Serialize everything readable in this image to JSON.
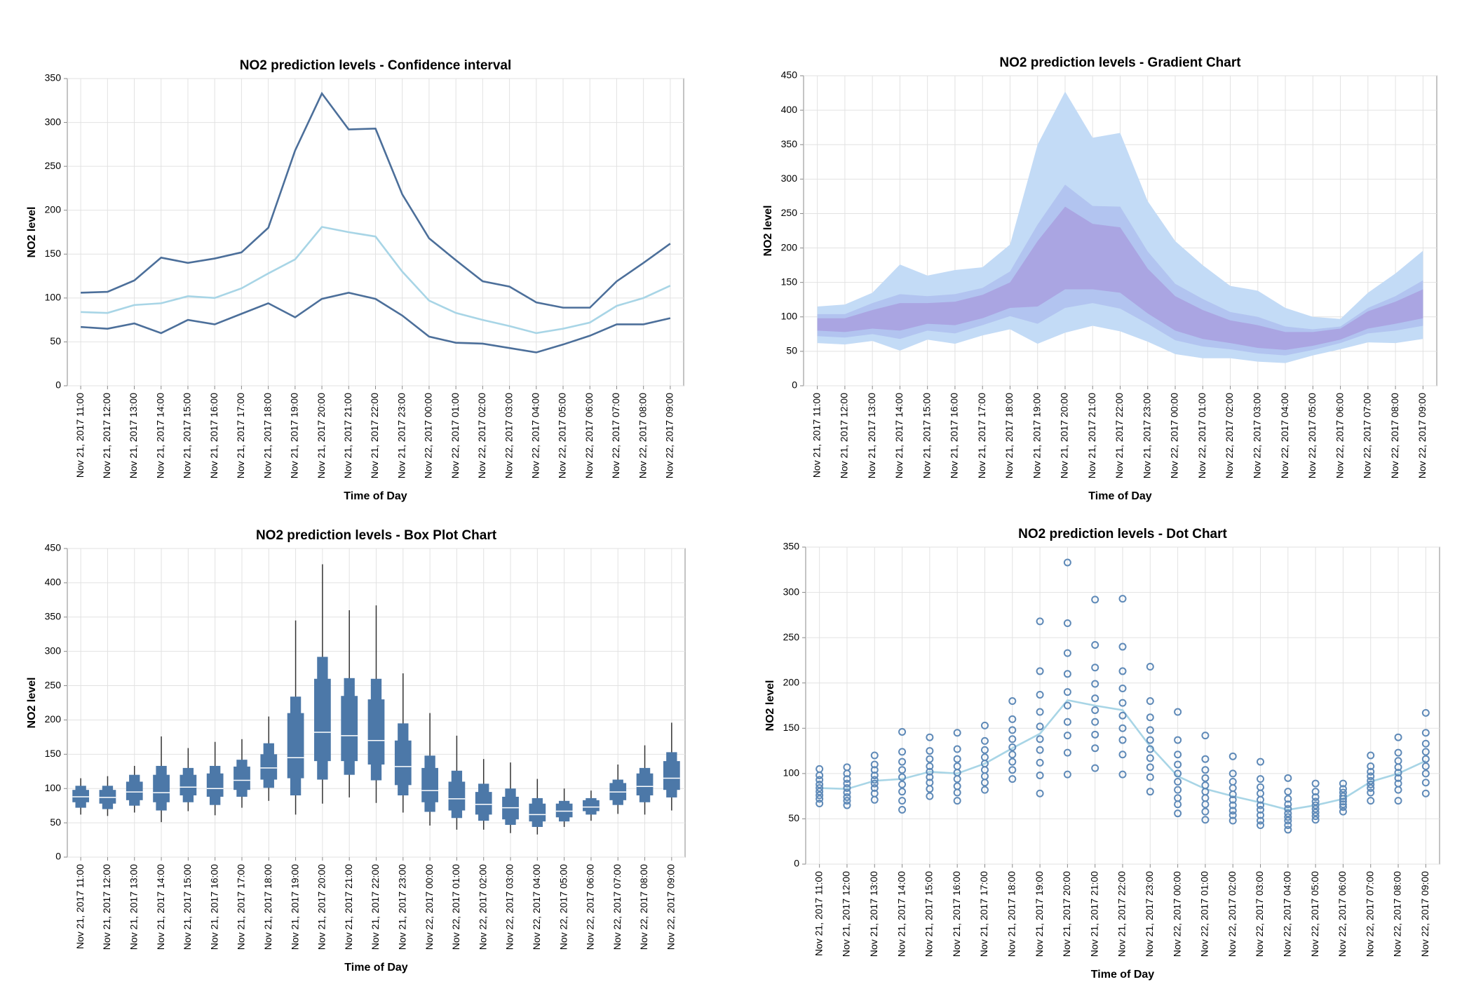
{
  "chart_data": [
    {
      "type": "line",
      "title": "NO2 prediction levels - Confidence interval",
      "x_label": "Time of Day",
      "y_label": "NO2 level",
      "categories": [
        "Nov 21, 2017 11:00",
        "Nov 21, 2017 12:00",
        "Nov 21, 2017 13:00",
        "Nov 21, 2017 14:00",
        "Nov 21, 2017 15:00",
        "Nov 21, 2017 16:00",
        "Nov 21, 2017 17:00",
        "Nov 21, 2017 18:00",
        "Nov 21, 2017 19:00",
        "Nov 21, 2017 20:00",
        "Nov 21, 2017 21:00",
        "Nov 21, 2017 22:00",
        "Nov 21, 2017 23:00",
        "Nov 22, 2017 00:00",
        "Nov 22, 2017 01:00",
        "Nov 22, 2017 02:00",
        "Nov 22, 2017 03:00",
        "Nov 22, 2017 04:00",
        "Nov 22, 2017 05:00",
        "Nov 22, 2017 06:00",
        "Nov 22, 2017 07:00",
        "Nov 22, 2017 08:00",
        "Nov 22, 2017 09:00"
      ],
      "series": [
        {
          "color": "#4c6f9a",
          "values": [
            106,
            107,
            120,
            146,
            140,
            145,
            152,
            180,
            268,
            333,
            292,
            293,
            218,
            168,
            143,
            119,
            113,
            95,
            89,
            89,
            119,
            140,
            162
          ]
        },
        {
          "color": "#a8d5e6",
          "values": [
            84,
            83,
            92,
            94,
            102,
            100,
            111,
            128,
            144,
            181,
            175,
            170,
            130,
            97,
            83,
            75,
            68,
            60,
            65,
            72,
            91,
            100,
            114
          ]
        },
        {
          "color": "#4c6f9a",
          "values": [
            67,
            65,
            71,
            60,
            75,
            70,
            82,
            94,
            78,
            99,
            106,
            99,
            80,
            56,
            49,
            48,
            43,
            38,
            47,
            57,
            70,
            70,
            77
          ]
        }
      ],
      "ylim": [
        0,
        350
      ],
      "yticks": [
        0,
        50,
        100,
        150,
        200,
        250,
        300,
        350
      ],
      "grid": true
    },
    {
      "type": "gradient",
      "title": "NO2 prediction levels - Gradient Chart",
      "x_label": "Time of Day",
      "y_label": "NO2 level",
      "categories": [
        "Nov 21, 2017 11:00",
        "Nov 21, 2017 12:00",
        "Nov 21, 2017 13:00",
        "Nov 21, 2017 14:00",
        "Nov 21, 2017 15:00",
        "Nov 21, 2017 16:00",
        "Nov 21, 2017 17:00",
        "Nov 21, 2017 18:00",
        "Nov 21, 2017 19:00",
        "Nov 21, 2017 20:00",
        "Nov 21, 2017 21:00",
        "Nov 21, 2017 22:00",
        "Nov 21, 2017 23:00",
        "Nov 22, 2017 00:00",
        "Nov 22, 2017 01:00",
        "Nov 22, 2017 02:00",
        "Nov 22, 2017 03:00",
        "Nov 22, 2017 04:00",
        "Nov 22, 2017 05:00",
        "Nov 22, 2017 06:00",
        "Nov 22, 2017 07:00",
        "Nov 22, 2017 08:00",
        "Nov 22, 2017 09:00"
      ],
      "bands": [
        {
          "color": "#c3dbf6",
          "upper": [
            115,
            118,
            135,
            176,
            160,
            168,
            172,
            205,
            350,
            427,
            360,
            367,
            268,
            210,
            175,
            145,
            138,
            113,
            100,
            97,
            135,
            163,
            196
          ],
          "lower": [
            62,
            60,
            65,
            51,
            67,
            61,
            73,
            82,
            61,
            77,
            87,
            79,
            64,
            46,
            40,
            40,
            35,
            33,
            44,
            53,
            63,
            62,
            68
          ]
        },
        {
          "color": "#b2c4f0",
          "upper": [
            104,
            104,
            120,
            133,
            130,
            133,
            142,
            166,
            234,
            292,
            261,
            260,
            195,
            148,
            126,
            107,
            100,
            86,
            82,
            86,
            113,
            130,
            153
          ],
          "lower": [
            72,
            70,
            75,
            68,
            80,
            76,
            88,
            101,
            90,
            113,
            120,
            112,
            90,
            66,
            57,
            53,
            47,
            44,
            52,
            62,
            76,
            80,
            87
          ]
        },
        {
          "color": "#aaa5e2",
          "upper": [
            98,
            98,
            110,
            120,
            120,
            122,
            132,
            150,
            210,
            260,
            235,
            230,
            170,
            130,
            110,
            95,
            88,
            78,
            78,
            83,
            108,
            122,
            140
          ],
          "lower": [
            80,
            78,
            83,
            80,
            90,
            88,
            98,
            113,
            115,
            140,
            140,
            135,
            105,
            80,
            68,
            62,
            55,
            52,
            58,
            67,
            83,
            90,
            98
          ]
        }
      ],
      "ylim": [
        0,
        450
      ],
      "yticks": [
        0,
        50,
        100,
        150,
        200,
        250,
        300,
        350,
        400,
        450
      ],
      "grid": true
    },
    {
      "type": "box",
      "title": "NO2 prediction levels - Box Plot Chart",
      "x_label": "Time of Day",
      "y_label": "NO2 level",
      "categories": [
        "Nov 21, 2017 11:00",
        "Nov 21, 2017 12:00",
        "Nov 21, 2017 13:00",
        "Nov 21, 2017 14:00",
        "Nov 21, 2017 15:00",
        "Nov 21, 2017 16:00",
        "Nov 21, 2017 17:00",
        "Nov 21, 2017 18:00",
        "Nov 21, 2017 19:00",
        "Nov 21, 2017 20:00",
        "Nov 21, 2017 21:00",
        "Nov 21, 2017 22:00",
        "Nov 21, 2017 23:00",
        "Nov 22, 2017 00:00",
        "Nov 22, 2017 01:00",
        "Nov 22, 2017 02:00",
        "Nov 22, 2017 03:00",
        "Nov 22, 2017 04:00",
        "Nov 22, 2017 05:00",
        "Nov 22, 2017 06:00",
        "Nov 22, 2017 07:00",
        "Nov 22, 2017 08:00",
        "Nov 22, 2017 09:00"
      ],
      "color": "#4c78a8",
      "min": [
        62,
        60,
        65,
        51,
        67,
        61,
        72,
        82,
        62,
        78,
        87,
        79,
        65,
        46,
        40,
        40,
        35,
        33,
        44,
        53,
        63,
        62,
        68
      ],
      "low": [
        72,
        70,
        75,
        68,
        80,
        76,
        88,
        101,
        90,
        113,
        120,
        112,
        90,
        66,
        57,
        53,
        47,
        44,
        52,
        62,
        76,
        80,
        87
      ],
      "q1": [
        80,
        78,
        83,
        80,
        90,
        88,
        98,
        113,
        115,
        140,
        140,
        135,
        105,
        80,
        68,
        62,
        55,
        52,
        58,
        67,
        83,
        90,
        98
      ],
      "median": [
        88,
        87,
        95,
        94,
        102,
        100,
        112,
        130,
        145,
        182,
        177,
        170,
        132,
        97,
        85,
        77,
        72,
        62,
        67,
        73,
        95,
        103,
        115
      ],
      "q3": [
        98,
        98,
        110,
        120,
        120,
        122,
        132,
        150,
        210,
        260,
        235,
        230,
        170,
        130,
        110,
        95,
        88,
        78,
        78,
        83,
        108,
        122,
        140
      ],
      "high": [
        104,
        104,
        120,
        133,
        130,
        133,
        142,
        166,
        234,
        292,
        261,
        260,
        195,
        148,
        126,
        107,
        100,
        86,
        82,
        86,
        113,
        130,
        153
      ],
      "max": [
        115,
        118,
        133,
        176,
        159,
        168,
        172,
        205,
        345,
        427,
        360,
        367,
        268,
        210,
        177,
        143,
        138,
        114,
        100,
        97,
        135,
        163,
        196
      ],
      "ylim": [
        0,
        450
      ],
      "yticks": [
        0,
        50,
        100,
        150,
        200,
        250,
        300,
        350,
        400,
        450
      ],
      "grid": true
    },
    {
      "type": "dot",
      "title": "NO2 prediction levels - Dot Chart",
      "x_label": "Time of Day",
      "y_label": "NO2 level",
      "categories": [
        "Nov 21, 2017 11:00",
        "Nov 21, 2017 12:00",
        "Nov 21, 2017 13:00",
        "Nov 21, 2017 14:00",
        "Nov 21, 2017 15:00",
        "Nov 21, 2017 16:00",
        "Nov 21, 2017 17:00",
        "Nov 21, 2017 18:00",
        "Nov 21, 2017 19:00",
        "Nov 21, 2017 20:00",
        "Nov 21, 2017 21:00",
        "Nov 21, 2017 22:00",
        "Nov 21, 2017 23:00",
        "Nov 22, 2017 00:00",
        "Nov 22, 2017 01:00",
        "Nov 22, 2017 02:00",
        "Nov 22, 2017 03:00",
        "Nov 22, 2017 04:00",
        "Nov 22, 2017 05:00",
        "Nov 22, 2017 06:00",
        "Nov 22, 2017 07:00",
        "Nov 22, 2017 08:00",
        "Nov 22, 2017 09:00"
      ],
      "color": "#5f8ab8",
      "points": [
        [
          105,
          98,
          93,
          88,
          84,
          80,
          76,
          72,
          67
        ],
        [
          107,
          100,
          94,
          89,
          84,
          79,
          74,
          70,
          65
        ],
        [
          120,
          110,
          104,
          98,
          93,
          89,
          84,
          78,
          71
        ],
        [
          146,
          124,
          113,
          104,
          96,
          88,
          80,
          70,
          60
        ],
        [
          140,
          125,
          116,
          108,
          102,
          96,
          90,
          83,
          75
        ],
        [
          145,
          127,
          116,
          108,
          101,
          94,
          86,
          79,
          70
        ],
        [
          153,
          136,
          126,
          118,
          111,
          104,
          97,
          90,
          82
        ],
        [
          180,
          160,
          148,
          138,
          129,
          121,
          113,
          104,
          94
        ],
        [
          268,
          213,
          187,
          168,
          152,
          138,
          126,
          112,
          98,
          78
        ],
        [
          333,
          266,
          233,
          210,
          190,
          175,
          157,
          142,
          123,
          99
        ],
        [
          292,
          242,
          217,
          199,
          183,
          170,
          157,
          143,
          128,
          106
        ],
        [
          293,
          240,
          213,
          194,
          178,
          164,
          150,
          137,
          121,
          99
        ],
        [
          218,
          180,
          162,
          148,
          137,
          127,
          117,
          107,
          96,
          80
        ],
        [
          168,
          137,
          121,
          110,
          100,
          91,
          82,
          73,
          66,
          56
        ],
        [
          142,
          116,
          104,
          95,
          87,
          80,
          73,
          66,
          58,
          49
        ],
        [
          119,
          100,
          91,
          84,
          77,
          71,
          65,
          59,
          54,
          48
        ],
        [
          113,
          94,
          85,
          78,
          71,
          65,
          60,
          54,
          48,
          43
        ],
        [
          95,
          80,
          72,
          66,
          61,
          56,
          52,
          48,
          43,
          38
        ],
        [
          89,
          80,
          74,
          69,
          65,
          61,
          57,
          53,
          49
        ],
        [
          89,
          83,
          79,
          75,
          72,
          69,
          66,
          63,
          58
        ],
        [
          120,
          108,
          102,
          97,
          92,
          88,
          84,
          79,
          70
        ],
        [
          140,
          123,
          114,
          107,
          101,
          95,
          89,
          82,
          70
        ],
        [
          167,
          145,
          133,
          124,
          116,
          108,
          100,
          90,
          78
        ]
      ],
      "line": {
        "color": "#a8d5e6",
        "values": [
          84,
          83,
          92,
          94,
          102,
          100,
          111,
          128,
          144,
          181,
          175,
          170,
          130,
          97,
          83,
          75,
          68,
          60,
          65,
          72,
          91,
          100,
          114
        ]
      },
      "ylim": [
        0,
        350
      ],
      "yticks": [
        0,
        50,
        100,
        150,
        200,
        250,
        300,
        350
      ],
      "grid": true
    }
  ]
}
